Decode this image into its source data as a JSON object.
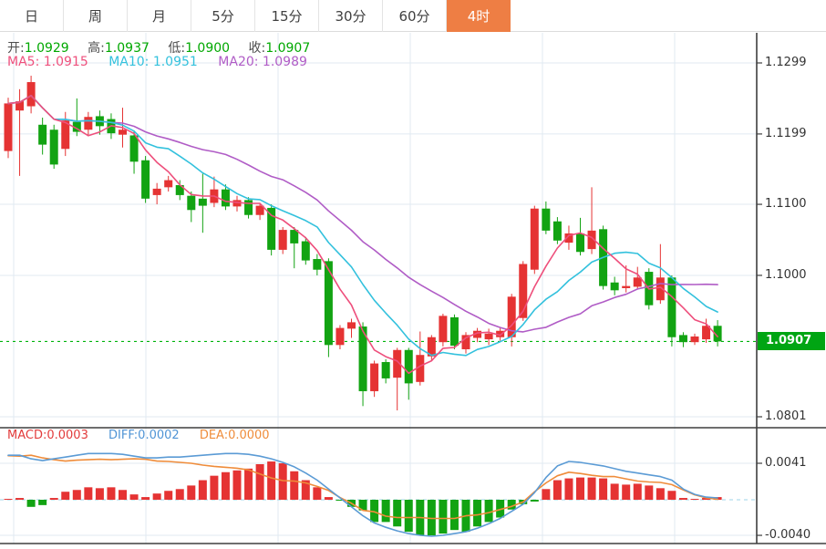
{
  "toolbar": {
    "tabs": [
      {
        "label": "日",
        "active": false
      },
      {
        "label": "周",
        "active": false
      },
      {
        "label": "月",
        "active": false
      },
      {
        "label": "5分",
        "active": false
      },
      {
        "label": "15分",
        "active": false
      },
      {
        "label": "30分",
        "active": false
      },
      {
        "label": "60分",
        "active": false
      },
      {
        "label": "4时",
        "active": true
      }
    ]
  },
  "readout": {
    "open_label": "开:",
    "open": "1.0929",
    "high_label": "高:",
    "high": "1.0937",
    "low_label": "低:",
    "low": "1.0900",
    "close_label": "收:",
    "close": "1.0907"
  },
  "ma_readout": {
    "ma5_label": "MA5:",
    "ma5": "1.0915",
    "ma10_label": "MA10:",
    "ma10": "1.0951",
    "ma20_label": "MA20:",
    "ma20": "1.0989"
  },
  "macd_readout": {
    "macd_label": "MACD:",
    "macd": "0.0003",
    "diff_label": "DIFF:",
    "diff": "0.0002",
    "dea_label": "DEA:",
    "dea": "0.0000"
  },
  "price_axis": {
    "labels": [
      "1.1299",
      "1.1199",
      "1.1100",
      "1.1000",
      "1.0801"
    ],
    "values": [
      1.1299,
      1.1199,
      1.11,
      1.1,
      1.0801
    ],
    "current_label": "1.0907",
    "current_value": 1.0907
  },
  "macd_axis": {
    "labels": [
      "0.0041",
      "-0.0040"
    ],
    "values": [
      41,
      -40
    ]
  },
  "colors": {
    "up": "#e53333",
    "down": "#12a312",
    "ma5": "#ee4f7c",
    "ma10": "#33c1dd",
    "ma20": "#b05cc6",
    "diff": "#5b9bd5",
    "dea": "#ef8c3a",
    "accent_tab": "#ee7e44",
    "badge": "#00a513",
    "dotted_price": "#00b30b",
    "grid": "#e0eaf2",
    "axis": "#3e3e3e",
    "zero_dash": "#9ed5e8",
    "ohlc_value": "#00a800"
  },
  "chart_data": [
    {
      "type": "candlestick",
      "timeframe": "4时",
      "up_color_meaning": "close>=open (red)",
      "down_color_meaning": "close<open (green)",
      "ylim": [
        1.0792,
        1.1336
      ],
      "y_axis_ticks": [
        1.1299,
        1.1199,
        1.11,
        1.1,
        1.0801
      ],
      "current_price": 1.0907,
      "ohlc_latest": {
        "open": 1.0929,
        "high": 1.0937,
        "low": 1.09,
        "close": 1.0907
      },
      "ma_periods": [
        5,
        10,
        20
      ],
      "ma_latest": {
        "ma5": 1.0915,
        "ma10": 1.0951,
        "ma20": 1.0989
      },
      "candles": [
        [
          1.1175,
          1.125,
          1.1165,
          1.1242
        ],
        [
          1.1232,
          1.1262,
          1.114,
          1.1245
        ],
        [
          1.1238,
          1.1281,
          1.1228,
          1.1272
        ],
        [
          1.1212,
          1.1222,
          1.117,
          1.1184
        ],
        [
          1.1205,
          1.1212,
          1.115,
          1.1156
        ],
        [
          1.1178,
          1.123,
          1.1168,
          1.1218
        ],
        [
          1.1216,
          1.1249,
          1.1196,
          1.1202
        ],
        [
          1.1205,
          1.123,
          1.1196,
          1.1223
        ],
        [
          1.1224,
          1.1232,
          1.1198,
          1.121
        ],
        [
          1.122,
          1.1228,
          1.1192,
          1.12
        ],
        [
          1.1198,
          1.1236,
          1.118,
          1.1205
        ],
        [
          1.1197,
          1.1204,
          1.1143,
          1.116
        ],
        [
          1.1162,
          1.1168,
          1.1102,
          1.1108
        ],
        [
          1.1113,
          1.113,
          1.11,
          1.1122
        ],
        [
          1.1124,
          1.114,
          1.1118,
          1.1134
        ],
        [
          1.1127,
          1.1134,
          1.1106,
          1.1113
        ],
        [
          1.1112,
          1.1118,
          1.1075,
          1.1092
        ],
        [
          1.1108,
          1.1143,
          1.106,
          1.1098
        ],
        [
          1.1102,
          1.1139,
          1.1096,
          1.1121
        ],
        [
          1.1121,
          1.1128,
          1.1092,
          1.1097
        ],
        [
          1.1097,
          1.1112,
          1.109,
          1.1106
        ],
        [
          1.1106,
          1.111,
          1.108,
          1.1085
        ],
        [
          1.1085,
          1.1102,
          1.1078,
          1.1098
        ],
        [
          1.1095,
          1.11,
          1.1028,
          1.1036
        ],
        [
          1.1036,
          1.1068,
          1.103,
          1.1064
        ],
        [
          1.1064,
          1.1068,
          1.101,
          1.1045
        ],
        [
          1.1048,
          1.1054,
          1.1015,
          1.1021
        ],
        [
          1.1023,
          1.103,
          1.1,
          1.1008
        ],
        [
          1.102,
          1.1024,
          1.0885,
          1.0902
        ],
        [
          1.0902,
          1.093,
          1.0896,
          1.0926
        ],
        [
          1.0925,
          1.0939,
          1.0912,
          1.0934
        ],
        [
          1.0928,
          1.0934,
          1.0816,
          1.0837
        ],
        [
          1.0837,
          1.088,
          1.0829,
          1.0876
        ],
        [
          1.0878,
          1.0882,
          1.0848,
          1.0855
        ],
        [
          1.0856,
          1.0898,
          1.081,
          1.0895
        ],
        [
          1.0895,
          1.0898,
          1.0825,
          1.0848
        ],
        [
          1.085,
          1.0921,
          1.0845,
          1.0888
        ],
        [
          1.0886,
          1.0916,
          1.088,
          1.0913
        ],
        [
          1.0906,
          1.0946,
          1.09,
          1.0943
        ],
        [
          1.0941,
          1.0945,
          1.0896,
          1.0901
        ],
        [
          1.0896,
          1.092,
          1.089,
          1.0916
        ],
        [
          1.0912,
          1.0926,
          1.0906,
          1.0922
        ],
        [
          1.091,
          1.0925,
          1.0902,
          1.0918
        ],
        [
          1.0913,
          1.0926,
          1.0908,
          1.0922
        ],
        [
          1.0913,
          1.0974,
          1.09,
          1.097
        ],
        [
          1.094,
          1.102,
          1.0936,
          1.1016
        ],
        [
          1.1008,
          1.1098,
          1.1002,
          1.1094
        ],
        [
          1.1094,
          1.1104,
          1.1058,
          1.1063
        ],
        [
          1.1076,
          1.1082,
          1.1044,
          1.1049
        ],
        [
          1.1046,
          1.107,
          1.1036,
          1.1059
        ],
        [
          1.1059,
          1.1081,
          1.1028,
          1.1033
        ],
        [
          1.1037,
          1.1124,
          1.103,
          1.1063
        ],
        [
          1.1065,
          1.107,
          1.098,
          1.0985
        ],
        [
          1.099,
          1.0998,
          1.0972,
          1.0979
        ],
        [
          1.0982,
          1.1014,
          1.0976,
          1.0985
        ],
        [
          1.0984,
          1.1012,
          1.098,
          1.0997
        ],
        [
          1.1005,
          1.101,
          1.0952,
          1.0958
        ],
        [
          1.0965,
          1.1044,
          1.096,
          1.0997
        ],
        [
          1.0997,
          1.1,
          1.09,
          1.0913
        ],
        [
          1.0916,
          1.092,
          1.0899,
          1.0906
        ],
        [
          1.0906,
          1.0918,
          1.0902,
          1.0914
        ],
        [
          1.091,
          1.0939,
          1.0905,
          1.0929
        ],
        [
          1.0929,
          1.0937,
          1.09,
          1.0907
        ]
      ]
    },
    {
      "type": "bar",
      "name": "MACD",
      "unit": 0.0001,
      "y_axis_ticks": [
        0.0041,
        -0.004
      ],
      "latest": {
        "macd": 0.0003,
        "diff": 0.0002,
        "dea": 0.0
      },
      "histogram": [
        1,
        2,
        -8,
        -6,
        2,
        9,
        11,
        14,
        13,
        14,
        11,
        6,
        3,
        7,
        10,
        12,
        16,
        22,
        27,
        31,
        33,
        35,
        40,
        43,
        41,
        32,
        22,
        14,
        3,
        -1,
        -8,
        -12,
        -25,
        -25,
        -30,
        -36,
        -40,
        -40,
        -38,
        -34,
        -36,
        -30,
        -25,
        -20,
        -11,
        -5,
        -2,
        12,
        22,
        24,
        25,
        25,
        24,
        18,
        17,
        18,
        16,
        13,
        10,
        2,
        1,
        2,
        3
      ],
      "series": [
        {
          "name": "DIFF",
          "values": [
            50,
            50,
            46,
            44,
            46,
            48,
            50,
            52,
            52,
            52,
            51,
            49,
            47,
            47,
            48,
            48,
            49,
            50,
            51,
            52,
            52,
            51,
            49,
            46,
            42,
            37,
            30,
            22,
            12,
            2,
            -8,
            -18,
            -26,
            -31,
            -35,
            -38,
            -40,
            -41,
            -40,
            -38,
            -36,
            -32,
            -27,
            -21,
            -13,
            -5,
            8,
            25,
            38,
            43,
            42,
            40,
            38,
            35,
            32,
            30,
            28,
            26,
            22,
            12,
            6,
            3,
            2
          ]
        },
        {
          "name": "DEA",
          "values": [
            49.5,
            49,
            50,
            47,
            45,
            43.5,
            44.5,
            45,
            45.5,
            45,
            45.5,
            46,
            45.5,
            43.5,
            43,
            42,
            41,
            39,
            37.5,
            36.5,
            35.5,
            33.5,
            29,
            24.5,
            21.5,
            21,
            19,
            15,
            10.5,
            2.5,
            -4,
            -12,
            -13.5,
            -18.5,
            -20,
            -20,
            -20,
            -21,
            -21,
            -21,
            -18,
            -17,
            -14.5,
            -11,
            -7.5,
            -2.5,
            9,
            19,
            27,
            31,
            29.5,
            27.5,
            26,
            26,
            23.5,
            21,
            20,
            19.5,
            17,
            11,
            5.5,
            2,
            0.5
          ]
        }
      ]
    }
  ]
}
